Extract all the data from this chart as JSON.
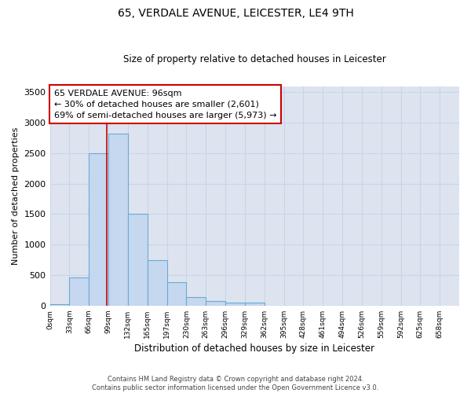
{
  "title": "65, VERDALE AVENUE, LEICESTER, LE4 9TH",
  "subtitle": "Size of property relative to detached houses in Leicester",
  "xlabel": "Distribution of detached houses by size in Leicester",
  "ylabel": "Number of detached properties",
  "footer_line1": "Contains HM Land Registry data © Crown copyright and database right 2024.",
  "footer_line2": "Contains public sector information licensed under the Open Government Licence v3.0.",
  "bin_labels": [
    "0sqm",
    "33sqm",
    "66sqm",
    "99sqm",
    "132sqm",
    "165sqm",
    "197sqm",
    "230sqm",
    "263sqm",
    "296sqm",
    "329sqm",
    "362sqm",
    "395sqm",
    "428sqm",
    "461sqm",
    "494sqm",
    "526sqm",
    "559sqm",
    "592sqm",
    "625sqm",
    "658sqm"
  ],
  "bar_values": [
    20,
    460,
    2500,
    2820,
    1510,
    740,
    390,
    145,
    75,
    55,
    55,
    0,
    0,
    0,
    0,
    0,
    0,
    0,
    0,
    0
  ],
  "bar_color": "#c5d8ef",
  "bar_edge_color": "#6aaad4",
  "grid_color": "#c8d4e8",
  "bg_color": "#dde4f0",
  "vline_color": "#cc0000",
  "annotation_text": "65 VERDALE AVENUE: 96sqm\n← 30% of detached houses are smaller (2,601)\n69% of semi-detached houses are larger (5,973) →",
  "ylim": [
    0,
    3600
  ],
  "yticks": [
    0,
    500,
    1000,
    1500,
    2000,
    2500,
    3000,
    3500
  ],
  "bin_width": 33,
  "vline_x": 96,
  "n_bins": 20
}
